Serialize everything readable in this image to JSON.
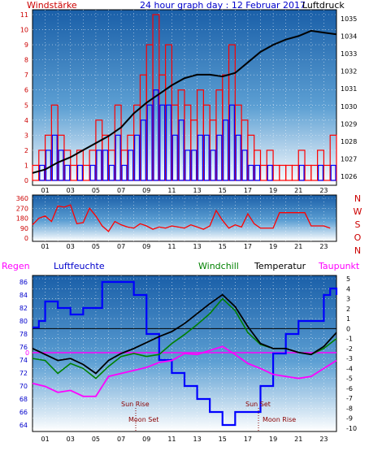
{
  "header": {
    "title": "24 hour graph day : 12 Februar 2017",
    "left_label": "Windstärke",
    "right_label": "Luftdruck"
  },
  "legend_bottom": {
    "regen": "Regen",
    "luftfeuchte": "Luftfeuchte",
    "windchill": "Windchill",
    "temperatur": "Temperatur",
    "taupunkt": "Taupunkt"
  },
  "annotations": {
    "sun_rise": "Sun Rise",
    "sun_set": "Sun Set",
    "moon_set": "Moon Set",
    "moon_rise": "Moon Rise",
    "rain_zero": "0"
  },
  "colors": {
    "wind_bar": "#ff0000",
    "gust_bar": "#0000ff",
    "pressure": "#000000",
    "humidity": "#0000ff",
    "temperature": "#000000",
    "windchill": "#008000",
    "dewpoint": "#ff00ff",
    "rain": "#ff00ff",
    "sky_top": "#1a5fa8",
    "sky_bottom": "#ffffff"
  },
  "chart_data": [
    {
      "type": "bar",
      "title": "24 hour graph day : 12 Februar 2017",
      "x_ticks": [
        "01",
        "03",
        "05",
        "07",
        "09",
        "11",
        "13",
        "15",
        "17",
        "19",
        "21",
        "23"
      ],
      "wind_ylim": [
        0,
        11
      ],
      "wind_ticks": [
        "0",
        "1",
        "2",
        "3",
        "4",
        "5",
        "6",
        "7",
        "8",
        "9",
        "10",
        "11"
      ],
      "pressure_ylim": [
        1025.5,
        1035.5
      ],
      "pressure_ticks": [
        "1026",
        "1027",
        "1028",
        "1029",
        "1030",
        "1031",
        "1032",
        "1033",
        "1034",
        "1035"
      ],
      "series": [
        {
          "name": "Windstärke",
          "axis": "left",
          "x": [
            0,
            0.5,
            1,
            1.5,
            2,
            2.5,
            3,
            3.5,
            4,
            4.5,
            5,
            5.5,
            6,
            6.5,
            7,
            7.5,
            8,
            8.5,
            9,
            9.5,
            10,
            10.5,
            11,
            11.5,
            12,
            12.5,
            13,
            13.5,
            14,
            14.5,
            15,
            15.5,
            16,
            16.5,
            17,
            17.5,
            18,
            18.5,
            19,
            19.5,
            20,
            20.5,
            21,
            21.5,
            22,
            22.5,
            23,
            23.5
          ],
          "values": [
            1,
            2,
            3,
            5,
            3,
            2,
            1,
            2,
            1,
            2,
            4,
            3,
            2,
            5,
            2,
            3,
            5,
            7,
            9,
            11,
            7,
            9,
            5,
            6,
            5,
            4,
            6,
            5,
            4,
            6,
            7,
            9,
            5,
            4,
            3,
            2,
            1,
            2,
            1,
            1,
            1,
            1,
            2,
            1,
            1,
            2,
            1,
            3
          ]
        },
        {
          "name": "Windböen",
          "axis": "left",
          "x": [
            0,
            0.5,
            1,
            1.5,
            2,
            2.5,
            3,
            3.5,
            4,
            4.5,
            5,
            5.5,
            6,
            6.5,
            7,
            7.5,
            8,
            8.5,
            9,
            9.5,
            10,
            10.5,
            11,
            11.5,
            12,
            12.5,
            13,
            13.5,
            14,
            14.5,
            15,
            15.5,
            16,
            16.5,
            17,
            17.5,
            18,
            18.5,
            19,
            19.5,
            20,
            20.5,
            21,
            21.5,
            22,
            22.5,
            23,
            23.5
          ],
          "values": [
            0,
            1,
            2,
            3,
            2,
            1,
            0,
            1,
            0,
            1,
            2,
            2,
            1,
            3,
            1,
            2,
            3,
            4,
            5,
            6,
            5,
            5,
            3,
            4,
            2,
            2,
            3,
            3,
            2,
            3,
            4,
            5,
            3,
            2,
            1,
            1,
            0,
            1,
            0,
            0,
            0,
            0,
            1,
            0,
            0,
            1,
            0,
            1
          ]
        },
        {
          "name": "Luftdruck",
          "axis": "right",
          "type": "line",
          "x": [
            0,
            1,
            2,
            3,
            4,
            5,
            6,
            7,
            8,
            9,
            10,
            11,
            12,
            13,
            14,
            15,
            16,
            17,
            18,
            19,
            20,
            21,
            22,
            23,
            24
          ],
          "values": [
            1026.2,
            1026.4,
            1026.8,
            1027.1,
            1027.5,
            1027.9,
            1028.3,
            1028.8,
            1029.6,
            1030.2,
            1030.7,
            1031.2,
            1031.6,
            1031.8,
            1031.8,
            1031.7,
            1031.9,
            1032.5,
            1033.1,
            1033.5,
            1033.8,
            1034.0,
            1034.3,
            1034.2,
            1034.1
          ]
        }
      ]
    },
    {
      "type": "line",
      "title": "",
      "x_ticks": [
        "01",
        "03",
        "05",
        "07",
        "09",
        "11",
        "13",
        "15",
        "17",
        "19",
        "21",
        "23"
      ],
      "ylim": [
        0,
        360
      ],
      "y_ticks": [
        "0",
        "90",
        "180",
        "270",
        "360"
      ],
      "direction_labels": [
        "N",
        "W",
        "S",
        "O",
        "N"
      ],
      "series": [
        {
          "name": "Windrichtung",
          "x": [
            0,
            0.5,
            1,
            1.5,
            2,
            2.5,
            3,
            3.5,
            4,
            4.5,
            5,
            5.5,
            6,
            6.5,
            7,
            7.5,
            8,
            8.5,
            9,
            9.5,
            10,
            10.5,
            11,
            11.5,
            12,
            12.5,
            13,
            13.5,
            14,
            14.5,
            15,
            15.5,
            16,
            16.5,
            17,
            17.5,
            18,
            18.5,
            19,
            19.5,
            20,
            20.5,
            21,
            21.5,
            22,
            22.5,
            23,
            23.5
          ],
          "values": [
            120,
            180,
            200,
            150,
            290,
            280,
            300,
            130,
            140,
            270,
            200,
            110,
            60,
            150,
            120,
            100,
            90,
            130,
            110,
            80,
            100,
            90,
            110,
            100,
            90,
            120,
            100,
            80,
            110,
            250,
            160,
            90,
            120,
            100,
            220,
            130,
            90,
            90,
            90,
            230,
            230,
            230,
            230,
            230,
            110,
            110,
            110,
            90
          ]
        }
      ]
    },
    {
      "type": "line",
      "title": "",
      "x_ticks": [
        "01",
        "03",
        "05",
        "07",
        "09",
        "11",
        "13",
        "15",
        "17",
        "19",
        "21",
        "23"
      ],
      "humidity_ylim": [
        63,
        87
      ],
      "humidity_ticks": [
        "64",
        "66",
        "68",
        "70",
        "72",
        "74",
        "76",
        "78",
        "80",
        "82",
        "84",
        "86"
      ],
      "temp_ylim": [
        -10,
        5
      ],
      "temp_ticks": [
        "5",
        "4",
        "3",
        "2",
        "1",
        "0",
        "-1",
        "-2",
        "-3",
        "-4",
        "-5",
        "-6",
        "-7",
        "-8",
        "-9",
        "-10"
      ],
      "series": [
        {
          "name": "Luftfeuchte",
          "axis": "left",
          "x": [
            0,
            0.5,
            1,
            2,
            3,
            4,
            5,
            5.5,
            6,
            7,
            8,
            9,
            10,
            11,
            12,
            13,
            14,
            15,
            16,
            17,
            18,
            19,
            20,
            21,
            22,
            23,
            23.5,
            24
          ],
          "values": [
            79,
            80,
            83,
            82,
            81,
            82,
            82,
            86,
            86,
            86,
            84,
            78,
            74,
            72,
            70,
            68,
            66,
            64,
            66,
            66,
            70,
            75,
            78,
            80,
            80,
            84,
            85,
            84
          ]
        },
        {
          "name": "Temperatur",
          "axis": "right",
          "x": [
            0,
            1,
            2,
            3,
            4,
            5,
            6,
            7,
            8,
            9,
            10,
            11,
            12,
            13,
            14,
            15,
            16,
            17,
            18,
            19,
            20,
            21,
            22,
            23,
            24
          ],
          "values": [
            -2.0,
            -2.6,
            -3.2,
            -3.0,
            -3.6,
            -4.5,
            -3.2,
            -2.5,
            -2.0,
            -1.4,
            -0.8,
            -0.3,
            0.5,
            1.5,
            2.5,
            3.4,
            2.2,
            0.2,
            -1.5,
            -2.0,
            -2.0,
            -2.4,
            -2.6,
            -1.8,
            -0.4
          ]
        },
        {
          "name": "Windchill",
          "axis": "right",
          "x": [
            0,
            1,
            2,
            3,
            4,
            5,
            6,
            7,
            8,
            9,
            10,
            11,
            12,
            13,
            14,
            15,
            16,
            17,
            18,
            19,
            20,
            21,
            22,
            23,
            24
          ],
          "values": [
            -3.0,
            -3.2,
            -4.5,
            -3.5,
            -4.0,
            -5.0,
            -3.8,
            -2.8,
            -2.5,
            -2.8,
            -2.6,
            -1.5,
            -0.6,
            0.4,
            1.5,
            3.0,
            1.8,
            -0.4,
            -1.6,
            -2.0,
            -2.0,
            -2.4,
            -2.6,
            -2.0,
            -1.0
          ]
        },
        {
          "name": "Taupunkt",
          "axis": "right",
          "x": [
            0,
            1,
            2,
            3,
            4,
            5,
            6,
            7,
            8,
            9,
            10,
            11,
            12,
            13,
            14,
            15,
            16,
            17,
            18,
            19,
            20,
            21,
            22,
            23,
            24
          ],
          "values": [
            -5.5,
            -5.8,
            -6.4,
            -6.2,
            -6.8,
            -6.8,
            -4.8,
            -4.5,
            -4.2,
            -3.9,
            -3.4,
            -3.2,
            -2.5,
            -2.6,
            -2.2,
            -1.8,
            -2.6,
            -3.5,
            -4.0,
            -4.6,
            -4.8,
            -5.0,
            -4.8,
            -4.0,
            -3.2
          ]
        },
        {
          "name": "Regen",
          "axis": "left",
          "x": [
            0,
            24
          ],
          "values": [
            0,
            0
          ]
        }
      ]
    }
  ]
}
